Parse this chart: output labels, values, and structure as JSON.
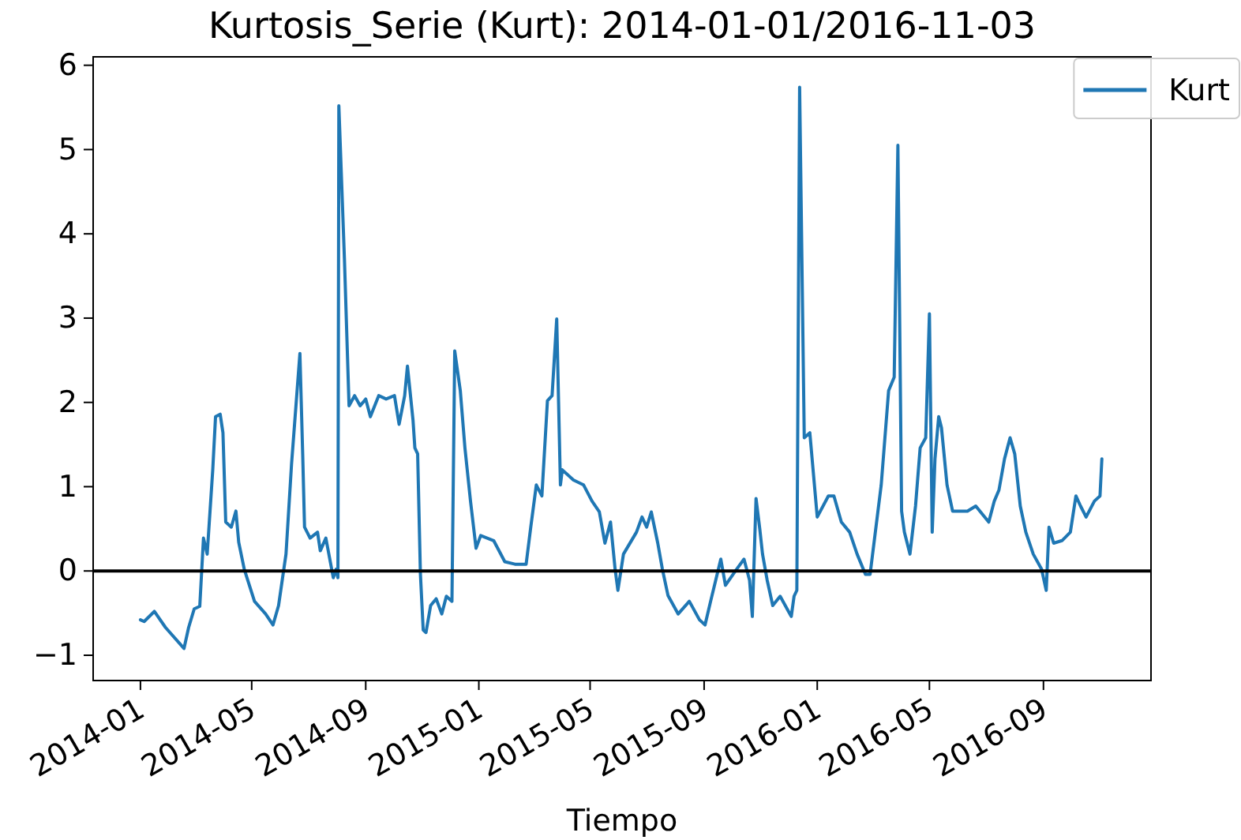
{
  "chart_data": {
    "type": "line",
    "title": "Kurtosis_Serie (Kurt): 2014-01-01/2016-11-03",
    "xlabel": "Tiempo",
    "x": [
      "2014-01-01",
      "2014-01-05",
      "2014-01-16",
      "2014-01-28",
      "2014-02-17",
      "2014-02-22",
      "2014-02-28",
      "2014-03-06",
      "2014-03-10",
      "2014-03-14",
      "2014-03-20",
      "2014-03-23",
      "2014-03-28",
      "2014-03-31",
      "2014-04-03",
      "2014-04-09",
      "2014-04-14",
      "2014-04-17",
      "2014-04-23",
      "2014-05-04",
      "2014-05-16",
      "2014-05-24",
      "2014-05-30",
      "2014-06-07",
      "2014-06-13",
      "2014-06-22",
      "2014-06-25",
      "2014-06-27",
      "2014-07-03",
      "2014-07-11",
      "2014-07-14",
      "2014-07-20",
      "2014-07-28",
      "2014-07-31",
      "2014-08-02",
      "2014-08-03",
      "2014-08-09",
      "2014-08-14",
      "2014-08-20",
      "2014-08-26",
      "2014-09-01",
      "2014-09-06",
      "2014-09-15",
      "2014-09-23",
      "2014-10-02",
      "2014-10-07",
      "2014-10-13",
      "2014-10-16",
      "2014-10-22",
      "2014-10-24",
      "2014-10-27",
      "2014-10-30",
      "2014-11-02",
      "2014-11-05",
      "2014-11-10",
      "2014-11-16",
      "2014-11-22",
      "2014-11-27",
      "2014-12-03",
      "2014-12-06",
      "2014-12-12",
      "2014-12-17",
      "2014-12-23",
      "2014-12-29",
      "2015-01-03",
      "2015-01-17",
      "2015-01-29",
      "2015-02-09",
      "2015-02-21",
      "2015-02-26",
      "2015-03-04",
      "2015-03-10",
      "2015-03-16",
      "2015-03-21",
      "2015-03-26",
      "2015-03-30",
      "2015-04-01",
      "2015-04-13",
      "2015-04-24",
      "2015-05-03",
      "2015-05-11",
      "2015-05-17",
      "2015-05-23",
      "2015-05-28",
      "2015-05-31",
      "2015-06-06",
      "2015-06-20",
      "2015-06-26",
      "2015-07-01",
      "2015-07-06",
      "2015-07-13",
      "2015-07-18",
      "2015-07-24",
      "2015-08-04",
      "2015-08-16",
      "2015-08-27",
      "2015-09-02",
      "2015-09-08",
      "2015-09-19",
      "2015-09-24",
      "2015-10-06",
      "2015-10-14",
      "2015-10-20",
      "2015-10-23",
      "2015-10-27",
      "2015-10-31",
      "2015-11-03",
      "2015-11-08",
      "2015-11-14",
      "2015-11-22",
      "2015-12-01",
      "2015-12-04",
      "2015-12-07",
      "2015-12-10",
      "2015-12-13",
      "2015-12-18",
      "2015-12-24",
      "2016-01-01",
      "2016-01-13",
      "2016-01-19",
      "2016-01-27",
      "2016-02-05",
      "2016-02-13",
      "2016-02-22",
      "2016-02-27",
      "2016-03-10",
      "2016-03-18",
      "2016-03-24",
      "2016-03-28",
      "2016-04-01",
      "2016-04-04",
      "2016-04-10",
      "2016-04-16",
      "2016-04-21",
      "2016-04-27",
      "2016-05-01",
      "2016-05-04",
      "2016-05-07",
      "2016-05-11",
      "2016-05-14",
      "2016-05-20",
      "2016-05-26",
      "2016-06-11",
      "2016-06-20",
      "2016-07-04",
      "2016-07-10",
      "2016-07-15",
      "2016-07-21",
      "2016-07-27",
      "2016-08-01",
      "2016-08-07",
      "2016-08-13",
      "2016-08-21",
      "2016-08-30",
      "2016-09-04",
      "2016-09-07",
      "2016-09-12",
      "2016-09-21",
      "2016-09-30",
      "2016-10-06",
      "2016-10-11",
      "2016-10-17",
      "2016-10-26",
      "2016-11-01",
      "2016-11-03"
    ],
    "series": [
      {
        "name": "Kurt",
        "color": "#1f77b4",
        "values": [
          -0.58,
          -0.6,
          -0.48,
          -0.67,
          -0.92,
          -0.67,
          -0.45,
          -0.42,
          0.39,
          0.2,
          1.2,
          1.83,
          1.86,
          1.64,
          0.58,
          0.52,
          0.71,
          0.34,
          0.02,
          -0.36,
          -0.51,
          -0.64,
          -0.41,
          0.2,
          1.27,
          2.58,
          1.39,
          0.52,
          0.39,
          0.46,
          0.24,
          0.39,
          -0.08,
          0.02,
          -0.08,
          5.52,
          3.71,
          1.96,
          2.08,
          1.96,
          2.04,
          1.83,
          2.08,
          2.04,
          2.08,
          1.74,
          2.08,
          2.43,
          1.79,
          1.46,
          1.39,
          -0.04,
          -0.7,
          -0.73,
          -0.41,
          -0.33,
          -0.51,
          -0.3,
          -0.36,
          2.61,
          2.14,
          1.46,
          0.83,
          0.27,
          0.42,
          0.36,
          0.11,
          0.08,
          0.08,
          0.52,
          1.02,
          0.89,
          2.02,
          2.08,
          2.99,
          1.02,
          1.2,
          1.08,
          1.02,
          0.83,
          0.7,
          0.33,
          0.58,
          0.02,
          -0.23,
          0.2,
          0.46,
          0.64,
          0.52,
          0.7,
          0.33,
          0.02,
          -0.29,
          -0.51,
          -0.36,
          -0.58,
          -0.64,
          -0.36,
          0.14,
          -0.17,
          0.02,
          0.14,
          -0.11,
          -0.54,
          0.86,
          0.5,
          0.2,
          -0.11,
          -0.41,
          -0.3,
          -0.48,
          -0.54,
          -0.3,
          -0.23,
          5.74,
          1.58,
          1.64,
          0.64,
          0.89,
          0.89,
          0.58,
          0.46,
          0.2,
          -0.04,
          -0.04,
          1.02,
          2.14,
          2.3,
          5.05,
          0.71,
          0.46,
          0.2,
          0.77,
          1.46,
          1.58,
          3.05,
          0.46,
          1.33,
          1.83,
          1.7,
          1.02,
          0.71,
          0.71,
          0.77,
          0.58,
          0.83,
          0.96,
          1.33,
          1.58,
          1.39,
          0.77,
          0.46,
          0.2,
          0.02,
          -0.23,
          0.52,
          0.33,
          0.36,
          0.46,
          0.89,
          0.77,
          0.64,
          0.83,
          0.89,
          1.33
        ]
      }
    ],
    "xlim": [
      "2013-11-11",
      "2016-12-26"
    ],
    "xticks": [
      "2014-01",
      "2014-05",
      "2014-09",
      "2015-01",
      "2015-05",
      "2015-09",
      "2016-01",
      "2016-05",
      "2016-09"
    ],
    "ylim": [
      -1.3,
      6.1
    ],
    "yticks": [
      -1,
      0,
      1,
      2,
      3,
      4,
      5,
      6
    ],
    "ref_lines": [
      {
        "axis": "y",
        "value": 0,
        "color": "#000000"
      }
    ],
    "legend": "top right"
  }
}
